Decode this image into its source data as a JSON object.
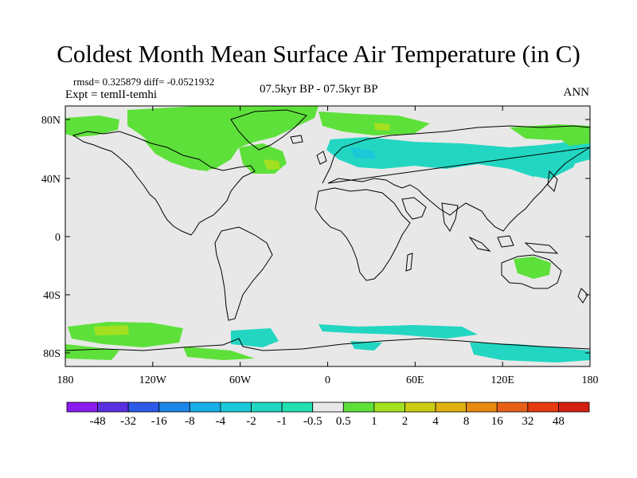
{
  "title": "Coldest Month Mean Surface Air Temperature (in C)",
  "stats": {
    "text": "rmsd= 0.325879  diff= -0.0521932"
  },
  "experiment": {
    "text": "Expt = temlI-temhi"
  },
  "period": {
    "text": "07.5kyr BP - 07.5kyr BP"
  },
  "season": {
    "text": "ANN"
  },
  "map": {
    "lat_labels": [
      "80N",
      "40N",
      "0",
      "40S",
      "80S"
    ],
    "lon_labels": [
      "180",
      "120W",
      "60W",
      "0",
      "60E",
      "120E",
      "180"
    ],
    "background_color": "#e8e8e8"
  },
  "colorbar": {
    "labels": [
      "-48",
      "-32",
      "-16",
      "-8",
      "-4",
      "-2",
      "-1",
      "-0.5",
      "0.5",
      "1",
      "2",
      "4",
      "8",
      "16",
      "32",
      "48"
    ],
    "colors": [
      "#8a1cf0",
      "#5a30e0",
      "#2d5ae8",
      "#1c86e8",
      "#18aee8",
      "#1ac8d8",
      "#22d6c2",
      "#22e0b0",
      "#e8e8e8",
      "#5ee03a",
      "#a4e020",
      "#cccc12",
      "#e0b010",
      "#e88a10",
      "#e86018",
      "#e63a10",
      "#d42010"
    ]
  }
}
